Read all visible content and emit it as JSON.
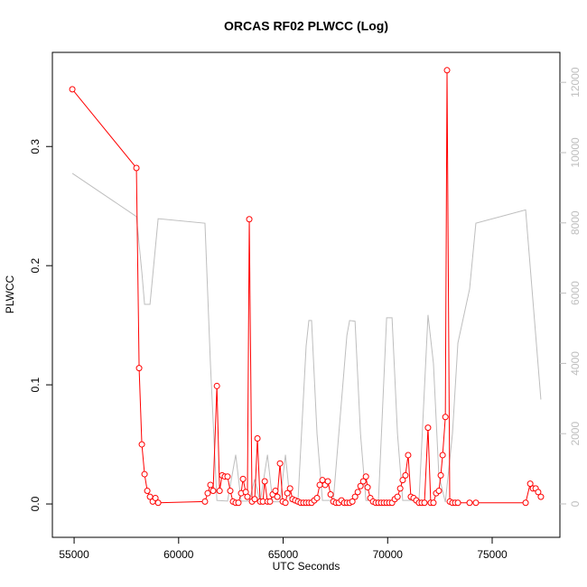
{
  "chart_data": {
    "type": "line",
    "title": "ORCAS RF02 PLWCC (Log)",
    "x_label": "UTC Seconds",
    "y_label": "PLWCC",
    "xlim": [
      53960,
      78240
    ],
    "ylim": [
      -0.028,
      0.379
    ],
    "y2lim": [
      -951,
      12853
    ],
    "xticks": [
      55000,
      60000,
      65000,
      70000,
      75000
    ],
    "yticks": [
      {
        "value": 0,
        "label": "0.0"
      },
      0.1,
      0.2,
      0.3
    ],
    "y2ticks": [
      0,
      2000,
      4000,
      6000,
      8000,
      10000,
      12000
    ],
    "y2_color": "#bebebe",
    "series": [
      {
        "color": "#ff0000",
        "markers": true,
        "x": [
          54914,
          57980,
          58110,
          58240,
          58370,
          58500,
          58630,
          58760,
          58890,
          59020,
          61260,
          61390,
          61520,
          61650,
          61830,
          61960,
          62080,
          62210,
          62340,
          62470,
          62600,
          62730,
          62860,
          62990,
          63080,
          63210,
          63290,
          63380,
          63510,
          63640,
          63770,
          63900,
          64030,
          64120,
          64250,
          64370,
          64500,
          64630,
          64720,
          64850,
          64980,
          65110,
          65200,
          65330,
          65450,
          65580,
          65710,
          65840,
          65970,
          66100,
          66230,
          66360,
          66490,
          66620,
          66750,
          66880,
          67010,
          67140,
          67270,
          67400,
          67530,
          67660,
          67790,
          67920,
          68050,
          68180,
          68310,
          68440,
          68570,
          68700,
          68830,
          68960,
          69040,
          69170,
          69300,
          69430,
          69560,
          69690,
          69820,
          69950,
          70080,
          70210,
          70340,
          70470,
          70600,
          70720,
          70850,
          70980,
          71110,
          71240,
          71370,
          71500,
          71630,
          71760,
          71930,
          72060,
          72190,
          72320,
          72450,
          72540,
          72630,
          72760,
          72840,
          72970,
          73100,
          73230,
          73360,
          73920,
          74220,
          76600,
          76820,
          76950,
          77080,
          77200,
          77330
        ],
        "values": [
          0.348,
          0.282,
          0.114,
          0.05,
          0.025,
          0.011,
          0.006,
          0.002,
          0.005,
          0.001,
          0.002,
          0.009,
          0.016,
          0.011,
          0.099,
          0.011,
          0.024,
          0.023,
          0.023,
          0.011,
          0.002,
          0.001,
          0.001,
          0.009,
          0.021,
          0.01,
          0.006,
          0.239,
          0.002,
          0.004,
          0.055,
          0.002,
          0.002,
          0.019,
          0.002,
          0.002,
          0.008,
          0.011,
          0.006,
          0.034,
          0.002,
          0.001,
          0.009,
          0.013,
          0.004,
          0.003,
          0.002,
          0.001,
          0.001,
          0.001,
          0.001,
          0.001,
          0.003,
          0.005,
          0.016,
          0.02,
          0.016,
          0.019,
          0.008,
          0.002,
          0.001,
          0.001,
          0.003,
          0.001,
          0.001,
          0.001,
          0.002,
          0.006,
          0.01,
          0.015,
          0.019,
          0.023,
          0.014,
          0.005,
          0.002,
          0.001,
          0.001,
          0.001,
          0.001,
          0.001,
          0.001,
          0.001,
          0.004,
          0.006,
          0.013,
          0.02,
          0.024,
          0.041,
          0.006,
          0.005,
          0.003,
          0.001,
          0.001,
          0.001,
          0.064,
          0.001,
          0.001,
          0.009,
          0.011,
          0.024,
          0.041,
          0.073,
          0.364,
          0.002,
          0.001,
          0.001,
          0.001,
          0.001,
          0.001,
          0.001,
          0.017,
          0.013,
          0.013,
          0.01,
          0.006
        ]
      },
      {
        "color": "#bebebe",
        "axis": "y2",
        "markers": false,
        "x": [
          54914,
          57980,
          58240,
          58370,
          58630,
          59020,
          61260,
          61520,
          61830,
          62340,
          62730,
          62990,
          63380,
          63640,
          63900,
          64250,
          64500,
          64850,
          65110,
          65330,
          65710,
          66100,
          66230,
          66360,
          66620,
          66880,
          67400,
          68050,
          68180,
          68440,
          68700,
          68960,
          69560,
          69950,
          70210,
          70470,
          70720,
          71500,
          71930,
          72190,
          72450,
          72760,
          73100,
          73360,
          73920,
          74220,
          76600,
          77330
        ],
        "values": [
          9410,
          8180,
          6600,
          5680,
          5680,
          8120,
          7990,
          4000,
          100,
          80,
          1400,
          80,
          80,
          700,
          50,
          1400,
          60,
          60,
          1400,
          80,
          100,
          4500,
          5220,
          5220,
          2000,
          100,
          100,
          4800,
          5220,
          5200,
          2000,
          100,
          100,
          5300,
          5300,
          2000,
          100,
          100,
          5380,
          4000,
          800,
          50,
          2000,
          4580,
          6120,
          7990,
          8370,
          2970
        ]
      }
    ]
  }
}
